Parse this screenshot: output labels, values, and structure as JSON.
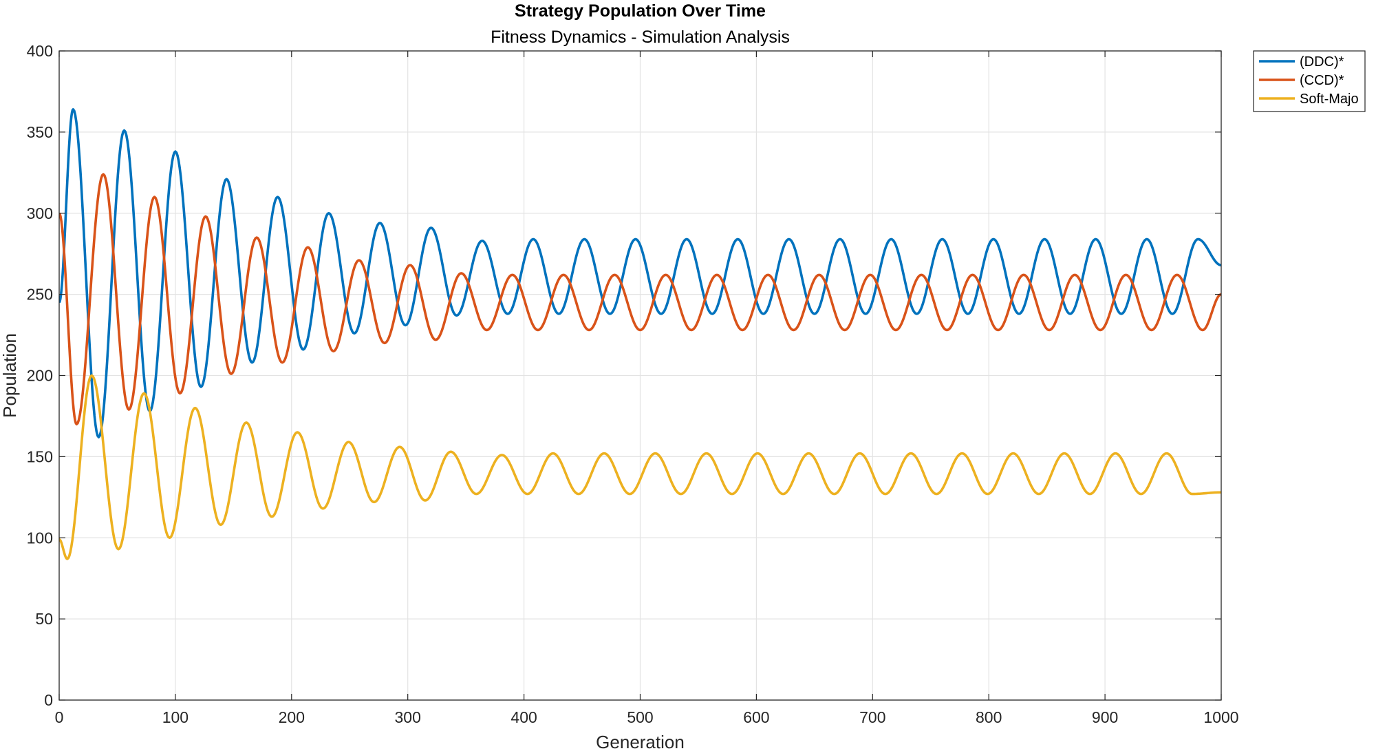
{
  "chart_data": {
    "type": "line",
    "title": "Strategy Population Over Time",
    "subtitle": "Fitness Dynamics - Simulation Analysis",
    "xlabel": "Generation",
    "ylabel": "Population",
    "xlim": [
      0,
      1000
    ],
    "ylim": [
      0,
      400
    ],
    "xticks": [
      0,
      100,
      200,
      300,
      400,
      500,
      600,
      700,
      800,
      900,
      1000
    ],
    "yticks": [
      0,
      50,
      100,
      150,
      200,
      250,
      300,
      350,
      400
    ],
    "grid": true,
    "legend_position": "outside-top-right",
    "series": [
      {
        "name": "(DDC)*",
        "color": "#0072BD",
        "x": [
          0,
          12,
          34,
          56,
          78,
          100,
          122,
          144,
          166,
          188,
          210,
          232,
          254,
          276,
          298,
          320,
          342,
          364,
          386,
          408,
          430,
          452,
          474,
          496,
          518,
          540,
          562,
          584,
          606,
          628,
          650,
          672,
          694,
          716,
          738,
          760,
          782,
          804,
          826,
          848,
          870,
          892,
          914,
          936,
          958,
          980,
          1000
        ],
        "y": [
          245,
          364,
          162,
          351,
          178,
          338,
          193,
          321,
          208,
          310,
          216,
          300,
          226,
          294,
          231,
          291,
          237,
          283,
          238,
          284,
          238,
          284,
          238,
          284,
          238,
          284,
          238,
          284,
          238,
          284,
          238,
          284,
          238,
          284,
          238,
          284,
          238,
          284,
          238,
          284,
          238,
          284,
          238,
          284,
          238,
          284,
          268
        ]
      },
      {
        "name": "(CCD)*",
        "color": "#D95319",
        "x": [
          0,
          15,
          38,
          60,
          82,
          104,
          126,
          148,
          170,
          192,
          214,
          236,
          258,
          280,
          302,
          324,
          346,
          368,
          390,
          412,
          434,
          456,
          478,
          500,
          522,
          544,
          566,
          588,
          610,
          632,
          654,
          676,
          698,
          720,
          742,
          764,
          786,
          808,
          830,
          852,
          874,
          896,
          918,
          940,
          962,
          984,
          1000
        ],
        "y": [
          300,
          170,
          324,
          179,
          310,
          189,
          298,
          201,
          285,
          208,
          279,
          215,
          271,
          220,
          268,
          222,
          263,
          228,
          262,
          228,
          262,
          228,
          262,
          228,
          262,
          228,
          262,
          228,
          262,
          228,
          262,
          228,
          262,
          228,
          262,
          228,
          262,
          228,
          262,
          228,
          262,
          228,
          262,
          228,
          262,
          228,
          250
        ]
      },
      {
        "name": "Soft-Majo",
        "color": "#EDB120",
        "x": [
          0,
          7,
          28,
          51,
          73,
          95,
          117,
          139,
          161,
          183,
          205,
          227,
          249,
          271,
          293,
          315,
          337,
          359,
          381,
          403,
          425,
          447,
          469,
          491,
          513,
          535,
          557,
          579,
          601,
          623,
          645,
          667,
          689,
          711,
          733,
          755,
          777,
          799,
          821,
          843,
          865,
          887,
          909,
          931,
          953,
          975,
          1000
        ],
        "y": [
          99,
          87,
          200,
          93,
          189,
          100,
          180,
          108,
          171,
          113,
          165,
          118,
          159,
          122,
          156,
          123,
          153,
          127,
          151,
          127,
          152,
          127,
          152,
          127,
          152,
          127,
          152,
          127,
          152,
          127,
          152,
          127,
          152,
          127,
          152,
          127,
          152,
          127,
          152,
          127,
          152,
          127,
          152,
          127,
          152,
          127,
          128
        ]
      }
    ]
  }
}
